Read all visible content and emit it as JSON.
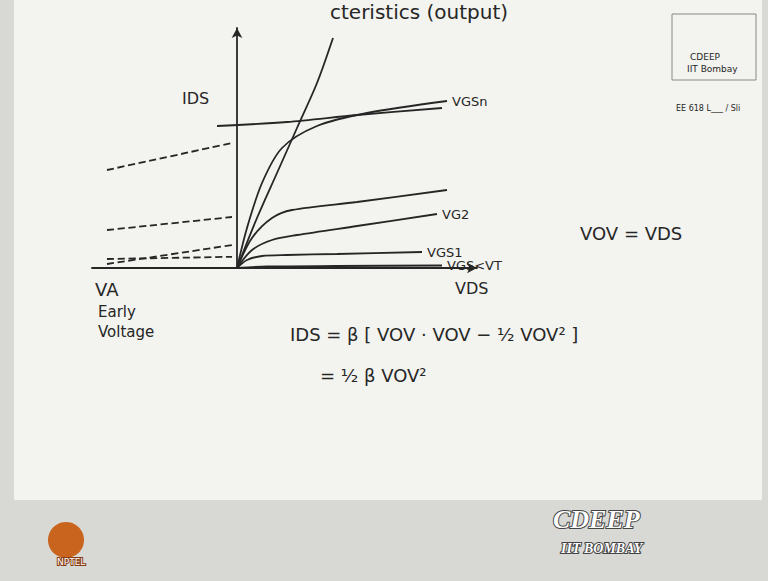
{
  "chart_data": {
    "type": "line",
    "title": "cteristics (output)",
    "x_label": "VDS",
    "y_label": "IDS",
    "xlim": [
      -1.45,
      2.4
    ],
    "ylim": [
      0,
      2.4
    ],
    "tick_labels": false,
    "grid": false,
    "color": "#262626",
    "series": [
      {
        "name": "VGS<VT",
        "x": [
          0,
          0.3,
          1.0,
          2.05
        ],
        "values": [
          0,
          0.015,
          0.02,
          0.025
        ]
      },
      {
        "name": "VGS1",
        "x": [
          0,
          0.1,
          0.25,
          0.5,
          1.0,
          1.85
        ],
        "values": [
          0,
          0.08,
          0.12,
          0.13,
          0.14,
          0.16
        ]
      },
      {
        "name": "VG2",
        "x": [
          0,
          0.15,
          0.35,
          0.6,
          1.2,
          2.0
        ],
        "values": [
          0,
          0.18,
          0.28,
          0.33,
          0.42,
          0.54
        ]
      },
      {
        "x": [
          0,
          0.15,
          0.35,
          0.55,
          1.2,
          2.1
        ],
        "values": [
          0,
          0.3,
          0.5,
          0.58,
          0.66,
          0.78
        ]
      },
      {
        "x": [
          -0.2,
          0.5,
          1.2,
          2.05
        ],
        "values": [
          1.42,
          1.46,
          1.53,
          1.6
        ]
      },
      {
        "name": "VGSn",
        "x": [
          0,
          0.1,
          0.25,
          0.45,
          0.8,
          1.3,
          2.1
        ],
        "values": [
          0,
          0.4,
          0.85,
          1.2,
          1.42,
          1.55,
          1.67
        ]
      },
      {
        "x": [
          0,
          0.2,
          0.4,
          0.6,
          0.8,
          0.96
        ],
        "values": [
          0,
          0.5,
          0.95,
          1.4,
          1.85,
          2.3
        ]
      },
      {
        "x": [
          -1.3,
          -0.05
        ],
        "values": [
          0.09,
          0.112
        ],
        "line_style": "dashed"
      },
      {
        "x": [
          -1.3,
          -0.05
        ],
        "values": [
          0.04,
          0.23
        ],
        "line_style": "dashed"
      },
      {
        "x": [
          -1.3,
          -0.05
        ],
        "values": [
          0.38,
          0.51
        ],
        "line_style": "dashed"
      },
      {
        "x": [
          -1.3,
          -0.05
        ],
        "values": [
          0.98,
          1.25
        ],
        "line_style": "dashed"
      }
    ],
    "annotations": [
      "VA",
      "Early",
      "Voltage",
      "VOV = VDS",
      "IDS = β [ VOV · VOV − ½ VOV² ]",
      "= ½ β VOV²",
      "CDEEP",
      "IIT Bombay",
      "EE 618 L___ / Sli",
      "CDEEP",
      "IIT BOMBAY",
      "NPTEL"
    ]
  }
}
